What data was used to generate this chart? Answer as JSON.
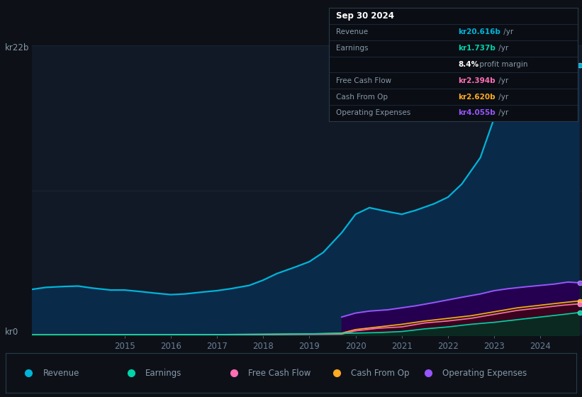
{
  "background_color": "#0d1117",
  "plot_bg_color": "#111927",
  "grid_color": "#1a2535",
  "ylabel_top": "kr22b",
  "ylabel_bottom": "kr0",
  "series": {
    "Revenue": {
      "color": "#00b4d8",
      "fill_color": "#0a2a4a",
      "x": [
        2013.0,
        2013.3,
        2013.7,
        2014.0,
        2014.3,
        2014.7,
        2015.0,
        2015.3,
        2015.7,
        2016.0,
        2016.3,
        2016.7,
        2017.0,
        2017.3,
        2017.7,
        2018.0,
        2018.3,
        2018.7,
        2019.0,
        2019.3,
        2019.7,
        2020.0,
        2020.3,
        2020.7,
        2021.0,
        2021.3,
        2021.7,
        2022.0,
        2022.3,
        2022.7,
        2023.0,
        2023.3,
        2023.7,
        2024.0,
        2024.3,
        2024.6,
        2024.83
      ],
      "y": [
        3.5,
        3.65,
        3.72,
        3.75,
        3.6,
        3.45,
        3.45,
        3.35,
        3.2,
        3.1,
        3.15,
        3.3,
        3.4,
        3.55,
        3.8,
        4.2,
        4.7,
        5.2,
        5.6,
        6.3,
        7.8,
        9.2,
        9.7,
        9.4,
        9.2,
        9.5,
        10.0,
        10.5,
        11.5,
        13.5,
        16.5,
        18.2,
        19.1,
        19.6,
        19.9,
        20.616,
        20.5
      ]
    },
    "Earnings": {
      "color": "#00d4aa",
      "fill_color": "#003322",
      "x": [
        2013.0,
        2014.0,
        2015.0,
        2016.0,
        2017.0,
        2018.0,
        2019.0,
        2019.7,
        2020.0,
        2020.5,
        2021.0,
        2021.5,
        2022.0,
        2022.5,
        2023.0,
        2023.5,
        2024.0,
        2024.5,
        2024.83
      ],
      "y": [
        0.05,
        0.05,
        0.06,
        0.06,
        0.07,
        0.09,
        0.12,
        0.15,
        0.18,
        0.22,
        0.3,
        0.5,
        0.65,
        0.85,
        1.0,
        1.2,
        1.4,
        1.6,
        1.737
      ]
    },
    "Free Cash Flow": {
      "color": "#ff6eb4",
      "fill_color": "#3d0020",
      "x": [
        2013.0,
        2014.0,
        2015.0,
        2016.0,
        2017.0,
        2018.0,
        2019.0,
        2019.7,
        2020.0,
        2020.5,
        2021.0,
        2021.5,
        2022.0,
        2022.5,
        2023.0,
        2023.5,
        2024.0,
        2024.5,
        2024.83
      ],
      "y": [
        0.03,
        0.03,
        0.04,
        0.04,
        0.04,
        0.06,
        0.08,
        0.1,
        0.35,
        0.55,
        0.65,
        0.95,
        1.1,
        1.3,
        1.6,
        1.9,
        2.1,
        2.3,
        2.394
      ]
    },
    "Cash From Op": {
      "color": "#ffaa22",
      "fill_color": "#332200",
      "x": [
        2013.0,
        2014.0,
        2015.0,
        2016.0,
        2017.0,
        2018.0,
        2019.0,
        2019.7,
        2020.0,
        2020.5,
        2021.0,
        2021.5,
        2022.0,
        2022.5,
        2023.0,
        2023.5,
        2024.0,
        2024.5,
        2024.83
      ],
      "y": [
        0.05,
        0.05,
        0.06,
        0.06,
        0.07,
        0.09,
        0.12,
        0.18,
        0.45,
        0.65,
        0.85,
        1.1,
        1.3,
        1.5,
        1.8,
        2.1,
        2.3,
        2.5,
        2.62
      ]
    },
    "Operating Expenses": {
      "color": "#9955ff",
      "fill_color": "#250050",
      "x": [
        2019.7,
        2020.0,
        2020.3,
        2020.7,
        2021.0,
        2021.3,
        2021.7,
        2022.0,
        2022.3,
        2022.7,
        2023.0,
        2023.3,
        2023.7,
        2024.0,
        2024.3,
        2024.6,
        2024.83
      ],
      "y": [
        1.4,
        1.7,
        1.85,
        1.95,
        2.1,
        2.25,
        2.5,
        2.7,
        2.9,
        3.15,
        3.4,
        3.55,
        3.7,
        3.8,
        3.9,
        4.055,
        4.0
      ]
    }
  },
  "x_ticks": [
    2015,
    2016,
    2017,
    2018,
    2019,
    2020,
    2021,
    2022,
    2023,
    2024
  ],
  "xlim": [
    2013.0,
    2024.9
  ],
  "ylim": [
    0,
    22
  ],
  "tooltip_rows": [
    {
      "label": "Sep 30 2024",
      "value": null,
      "value_color": null,
      "is_title": true
    },
    {
      "label": "Revenue",
      "value": "kr20.616b",
      "suffix": " /yr",
      "value_color": "#00b4d8",
      "is_title": false
    },
    {
      "label": "Earnings",
      "value": "kr1.737b",
      "suffix": " /yr",
      "value_color": "#00d4aa",
      "is_title": false
    },
    {
      "label": "",
      "value": "8.4%",
      "suffix": " profit margin",
      "value_color": "#ffffff",
      "is_title": false
    },
    {
      "label": "Free Cash Flow",
      "value": "kr2.394b",
      "suffix": " /yr",
      "value_color": "#ff6eb4",
      "is_title": false
    },
    {
      "label": "Cash From Op",
      "value": "kr2.620b",
      "suffix": " /yr",
      "value_color": "#ffaa22",
      "is_title": false
    },
    {
      "label": "Operating Expenses",
      "value": "kr4.055b",
      "suffix": " /yr",
      "value_color": "#9955ff",
      "is_title": false
    }
  ],
  "legend": [
    {
      "label": "Revenue",
      "color": "#00b4d8"
    },
    {
      "label": "Earnings",
      "color": "#00d4aa"
    },
    {
      "label": "Free Cash Flow",
      "color": "#ff6eb4"
    },
    {
      "label": "Cash From Op",
      "color": "#ffaa22"
    },
    {
      "label": "Operating Expenses",
      "color": "#9955ff"
    }
  ]
}
